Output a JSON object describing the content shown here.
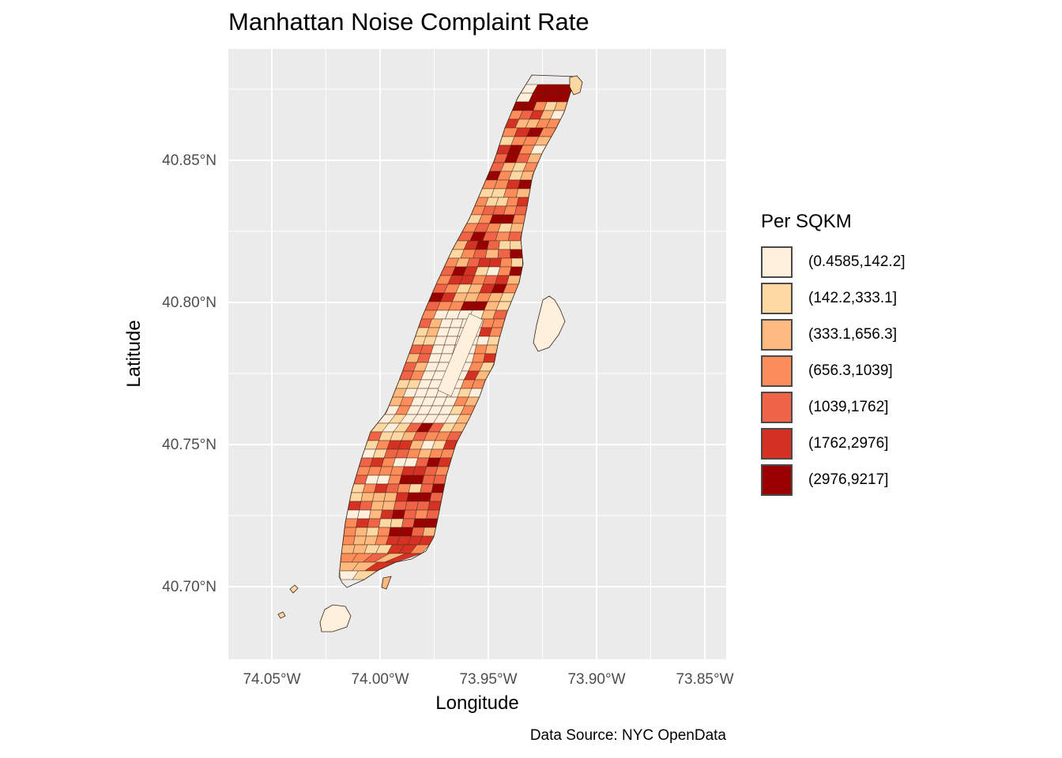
{
  "map": {
    "title": "Manhattan Noise Complaint Rate",
    "xlabel": "Longitude",
    "ylabel": "Latitude",
    "caption": "Data Source: NYC OpenData",
    "x_ticks": [
      "74.05°W",
      "74.00°W",
      "73.95°W",
      "73.90°W",
      "73.85°W"
    ],
    "y_ticks": [
      "40.85°N",
      "40.80°N",
      "40.75°N",
      "40.70°N"
    ],
    "xlim": [
      -74.07,
      -73.84
    ],
    "ylim": [
      40.673,
      40.888
    ],
    "background": "#ebebeb",
    "gridlines": true
  },
  "legend": {
    "title": "Per SQKM",
    "items": [
      {
        "label": "(0.4585,142.2]",
        "color": "#fff0dd"
      },
      {
        "label": "(142.2,333.1]",
        "color": "#fdd8a3"
      },
      {
        "label": "(333.1,656.3]",
        "color": "#fdb97e"
      },
      {
        "label": "(656.3,1039]",
        "color": "#fc8c59"
      },
      {
        "label": "(1039,1762]",
        "color": "#ef6447"
      },
      {
        "label": "(1762,2976]",
        "color": "#d63224"
      },
      {
        "label": "(2976,9217]",
        "color": "#990000"
      }
    ]
  }
}
